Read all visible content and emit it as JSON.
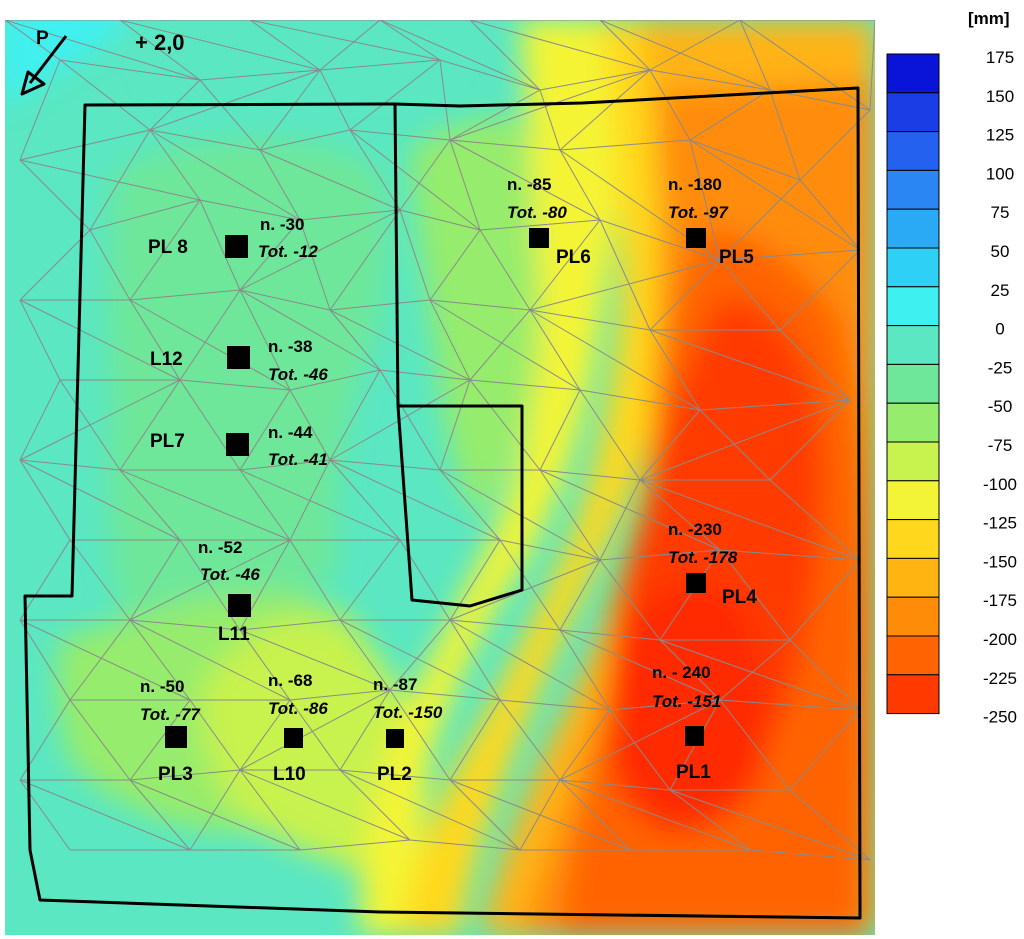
{
  "map": {
    "north_arrow_label": "P",
    "reference_level": "+ 2,0",
    "mesh": "triangulated",
    "colors": {
      "outline": "#000000",
      "mesh": "#8a8a8a",
      "marker": "#000000"
    },
    "points": [
      {
        "id": "PL 8",
        "n": "n. -30",
        "tot": "Tot. -12"
      },
      {
        "id": "L12",
        "n": "n. -38",
        "tot": "Tot. -46"
      },
      {
        "id": "PL7",
        "n": "n. -44",
        "tot": "Tot. -41"
      },
      {
        "id": "L11",
        "n": "n. -52",
        "tot": "Tot. -46"
      },
      {
        "id": "PL3",
        "n": "n. -50",
        "tot": "Tot. -77"
      },
      {
        "id": "L10",
        "n": "n. -68",
        "tot": "Tot. -86"
      },
      {
        "id": "PL2",
        "n": "n. -87",
        "tot": "Tot. -150"
      },
      {
        "id": "PL6",
        "n": "n. -85",
        "tot": "Tot. -80"
      },
      {
        "id": "PL5",
        "n": "n. -180",
        "tot": "Tot. -97"
      },
      {
        "id": "PL4",
        "n": "n. -230",
        "tot": "Tot. -178"
      },
      {
        "id": "PL1",
        "n": "n. - 240",
        "tot": "Tot. -151"
      }
    ]
  },
  "legend": {
    "unit": "[mm]",
    "ticks": [
      "175",
      "150",
      "125",
      "100",
      "75",
      "50",
      "25",
      "0",
      "-25",
      "-50",
      "-75",
      "-100",
      "-125",
      "-150",
      "-175",
      "-200",
      "-225",
      "-250"
    ],
    "colors": [
      "#0a14d8",
      "#1a3ee6",
      "#2461ee",
      "#2a86f2",
      "#2aaaf5",
      "#2ed0f6",
      "#3ff0f0",
      "#5ae7c2",
      "#6ee79a",
      "#96ec6c",
      "#c8f24e",
      "#f4f436",
      "#ffd81e",
      "#ffb412",
      "#ff8c08",
      "#ff6402",
      "#ff3a00"
    ]
  }
}
